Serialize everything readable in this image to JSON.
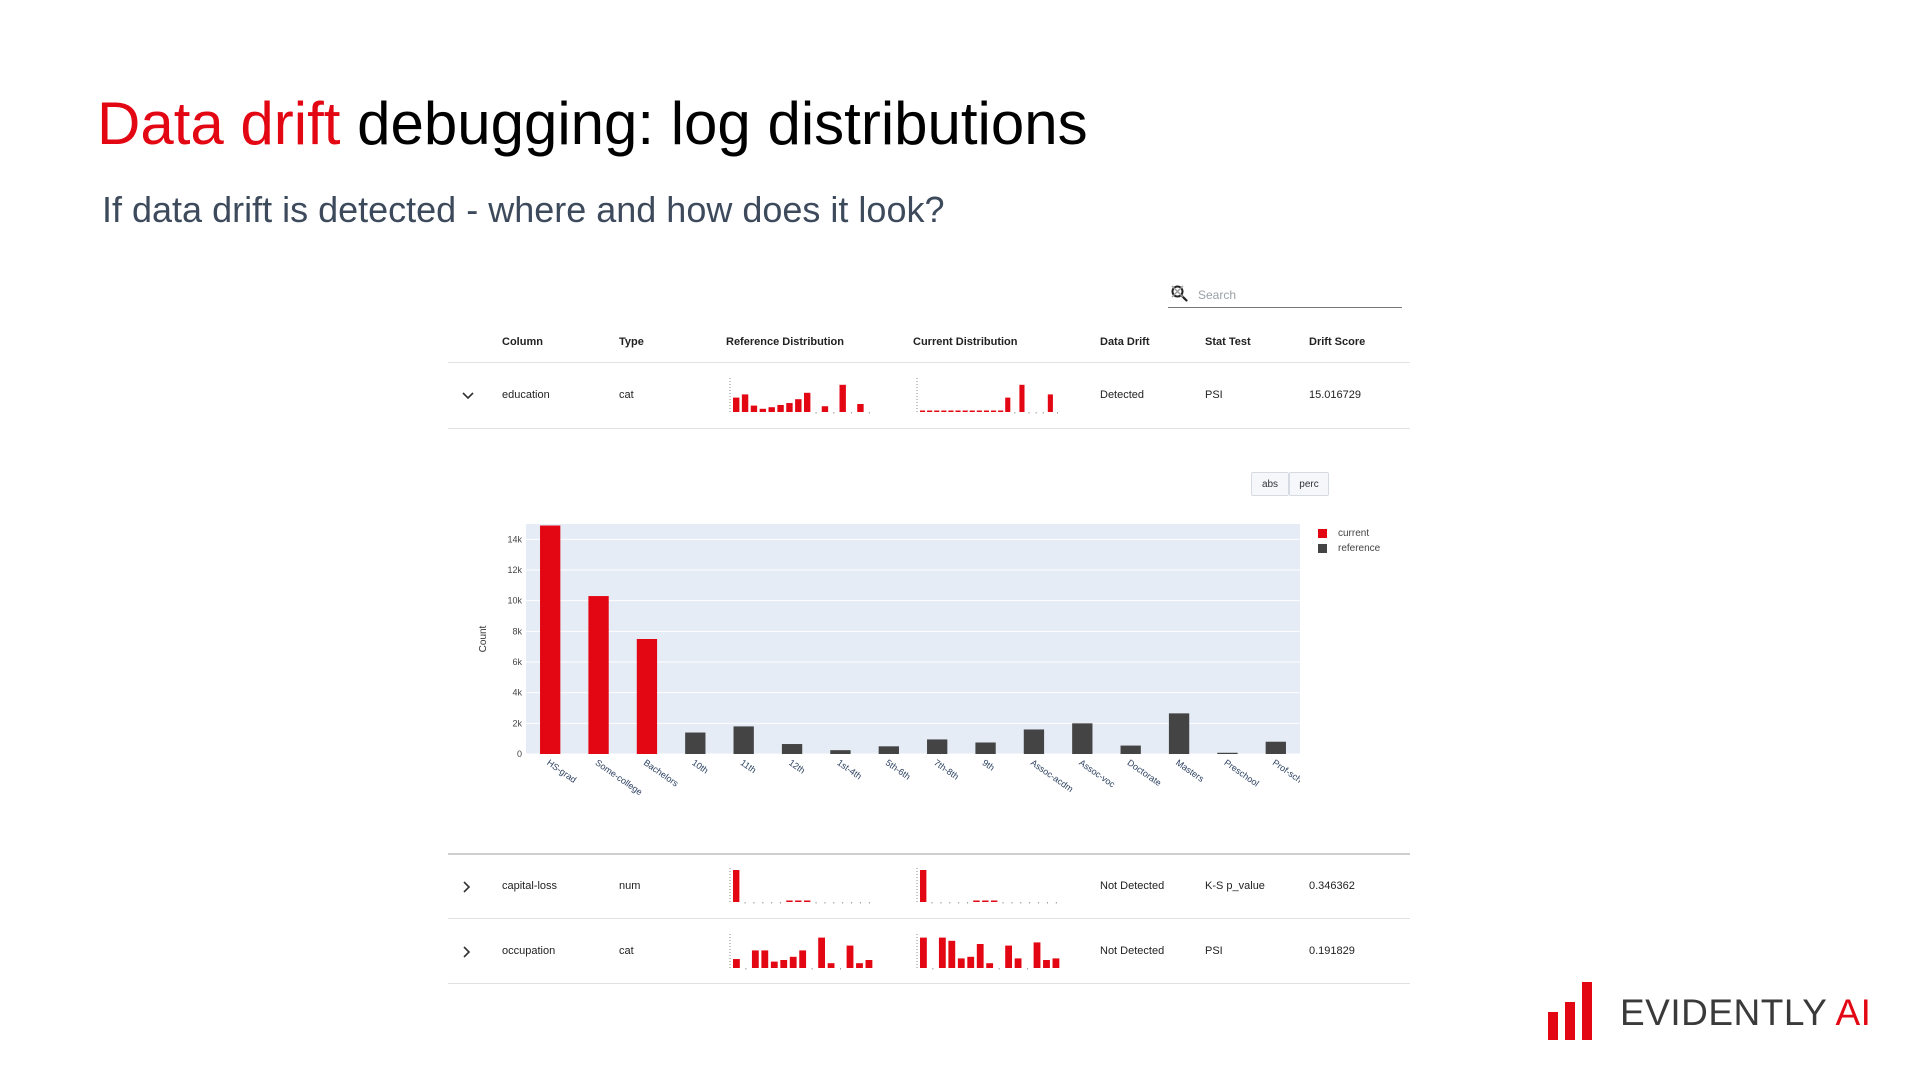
{
  "slide": {
    "title_accent": "Data drift",
    "title_rest": " debugging: log distributions",
    "subtitle": "If data drift is detected - where and how does it look?"
  },
  "search": {
    "placeholder": "Search",
    "value": ""
  },
  "table": {
    "headers": [
      "Column",
      "Type",
      "Reference Distribution",
      "Current Distribution",
      "Data Drift",
      "Stat Test",
      "Drift Score"
    ],
    "rows": [
      {
        "column": "education",
        "type": "cat",
        "drift": "Detected",
        "stat_test": "PSI",
        "score": "15.016729",
        "expanded": true,
        "ref_spark": [
          45,
          55,
          20,
          10,
          15,
          22,
          28,
          40,
          60,
          0,
          18,
          0,
          85,
          0,
          25,
          0
        ],
        "cur_spark": [
          2,
          2,
          2,
          2,
          2,
          2,
          2,
          2,
          2,
          2,
          2,
          2,
          45,
          0,
          85,
          0,
          0,
          0,
          55,
          0
        ]
      },
      {
        "column": "capital-loss",
        "type": "num",
        "drift": "Not Detected",
        "stat_test": "K-S p_value",
        "score": "0.346362",
        "expanded": false,
        "ref_spark": [
          100,
          0,
          0,
          0,
          0,
          0,
          2,
          2,
          2,
          0,
          0,
          0,
          0,
          0,
          0,
          0
        ],
        "cur_spark": [
          100,
          0,
          0,
          0,
          0,
          0,
          2,
          2,
          2,
          0,
          0,
          0,
          0,
          0,
          0,
          0
        ]
      },
      {
        "column": "occupation",
        "type": "cat",
        "drift": "Not Detected",
        "stat_test": "PSI",
        "score": "0.191829",
        "expanded": false,
        "ref_spark": [
          28,
          0,
          55,
          55,
          20,
          25,
          35,
          55,
          0,
          95,
          15,
          0,
          70,
          15,
          25
        ],
        "cur_spark": [
          95,
          0,
          95,
          85,
          30,
          35,
          75,
          15,
          0,
          70,
          30,
          0,
          80,
          25,
          30
        ]
      }
    ]
  },
  "toggle": {
    "abs": "abs",
    "perc": "perc"
  },
  "legend": [
    {
      "name": "current",
      "color": "#e30613"
    },
    {
      "name": "reference",
      "color": "#444444"
    }
  ],
  "chart_data": {
    "type": "bar",
    "ylabel": "Count",
    "xlabel": "",
    "ylim": [
      0,
      15000
    ],
    "yticks": [
      0,
      2000,
      4000,
      6000,
      8000,
      10000,
      12000,
      14000
    ],
    "ytick_labels": [
      "0",
      "2k",
      "4k",
      "6k",
      "8k",
      "10k",
      "12k",
      "14k"
    ],
    "categories": [
      "HS-grad",
      "Some-college",
      "Bachelors",
      "10th",
      "11th",
      "12th",
      "1st-4th",
      "5th-6th",
      "7th-8th",
      "9th",
      "Assoc-acdm",
      "Assoc-voc",
      "Doctorate",
      "Masters",
      "Preschool",
      "Prof-school"
    ],
    "series": [
      {
        "name": "current",
        "color": "#e30613",
        "values": [
          14900,
          10300,
          7500,
          0,
          0,
          0,
          0,
          0,
          0,
          0,
          0,
          0,
          0,
          0,
          0,
          0
        ]
      },
      {
        "name": "reference",
        "color": "#444444",
        "values": [
          0,
          0,
          0,
          1400,
          1800,
          650,
          250,
          500,
          950,
          750,
          1600,
          2000,
          550,
          2650,
          80,
          800
        ]
      }
    ]
  },
  "brand": {
    "logo_main": "EVIDENTLY ",
    "logo_ai": "AI",
    "bar_color": "#e30613"
  }
}
